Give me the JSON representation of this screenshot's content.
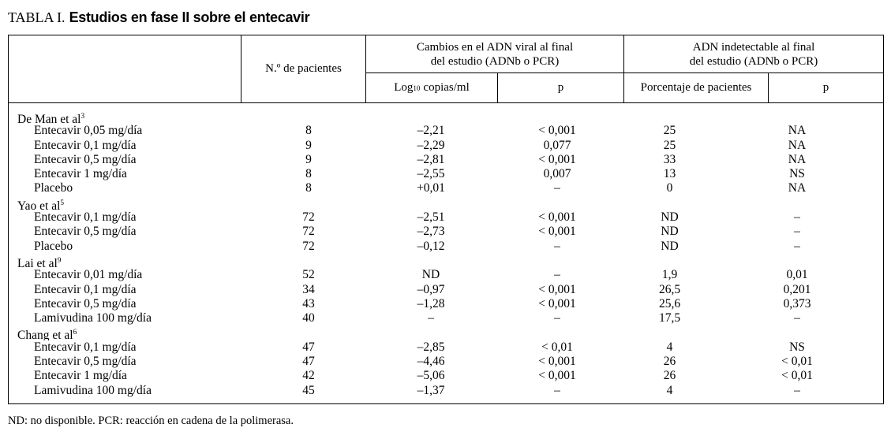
{
  "title": {
    "prefix": "TABLA I.",
    "main": "Estudios en fase II sobre el entecavir"
  },
  "header": {
    "patients_col": "N.º de pacientes",
    "group_adn_cambios": {
      "line1": "Cambios en el ADN viral al final",
      "line2": "del estudio (ADNb o PCR)",
      "sub_log_base": "Log",
      "sub_log_subscript": "10",
      "sub_log_unit": "copias/ml",
      "sub_p": "p"
    },
    "group_adn_indetectable": {
      "line1": "ADN indetectable al final",
      "line2": "del estudio (ADNb o PCR)",
      "sub_pct": "Porcentaje de pacientes",
      "sub_p": "p"
    }
  },
  "rows": [
    {
      "type": "group",
      "label": "De Man et al",
      "ref": "3"
    },
    {
      "type": "data",
      "label": "Entecavir 0,05 mg/día",
      "n": "8",
      "log": "–2,21",
      "p1": "< 0,001",
      "pct": "25",
      "p2": "NA"
    },
    {
      "type": "data",
      "label": "Entecavir 0,1 mg/día",
      "n": "9",
      "log": "–2,29",
      "p1": "0,077",
      "pct": "25",
      "p2": "NA"
    },
    {
      "type": "data",
      "label": "Entecavir 0,5 mg/día",
      "n": "9",
      "log": "–2,81",
      "p1": "< 0,001",
      "pct": "33",
      "p2": "NA"
    },
    {
      "type": "data",
      "label": "Entecavir 1 mg/día",
      "n": "8",
      "log": "–2,55",
      "p1": "0,007",
      "pct": "13",
      "p2": "NS"
    },
    {
      "type": "data",
      "label": "Placebo",
      "n": "8",
      "log": "+0,01",
      "p1": "–",
      "pct": "0",
      "p2": "NA"
    },
    {
      "type": "group",
      "label": "Yao et al",
      "ref": "5"
    },
    {
      "type": "data",
      "label": "Entecavir 0,1 mg/día",
      "n": "72",
      "log": "–2,51",
      "p1": "< 0,001",
      "pct": "ND",
      "p2": "–"
    },
    {
      "type": "data",
      "label": "Entecavir 0,5 mg/día",
      "n": "72",
      "log": "–2,73",
      "p1": "< 0,001",
      "pct": "ND",
      "p2": "–"
    },
    {
      "type": "data",
      "label": "Placebo",
      "n": "72",
      "log": "–0,12",
      "p1": "–",
      "pct": "ND",
      "p2": "–"
    },
    {
      "type": "group",
      "label": "Lai et al",
      "ref": "9"
    },
    {
      "type": "data",
      "label": "Entecavir 0,01 mg/día",
      "n": "52",
      "log": "ND",
      "p1": "–",
      "pct": "1,9",
      "p2": "0,01"
    },
    {
      "type": "data",
      "label": "Entecavir 0,1 mg/día",
      "n": "34",
      "log": "–0,97",
      "p1": "< 0,001",
      "pct": "26,5",
      "p2": "0,201"
    },
    {
      "type": "data",
      "label": "Entecavir 0,5 mg/día",
      "n": "43",
      "log": "–1,28",
      "p1": "< 0,001",
      "pct": "25,6",
      "p2": "0,373"
    },
    {
      "type": "data",
      "label": "Lamivudina 100 mg/día",
      "n": "40",
      "log": "–",
      "p1": "–",
      "pct": "17,5",
      "p2": "–"
    },
    {
      "type": "group",
      "label": "Chang et al",
      "ref": "6"
    },
    {
      "type": "data",
      "label": "Entecavir 0,1 mg/día",
      "n": "47",
      "log": "–2,85",
      "p1": "< 0,01",
      "pct": "4",
      "p2": "NS"
    },
    {
      "type": "data",
      "label": "Entecavir 0,5 mg/día",
      "n": "47",
      "log": "–4,46",
      "p1": "< 0,001",
      "pct": "26",
      "p2": "< 0,01"
    },
    {
      "type": "data",
      "label": "Entecavir 1 mg/día",
      "n": "42",
      "log": "–5,06",
      "p1": "< 0,001",
      "pct": "26",
      "p2": "< 0,01"
    },
    {
      "type": "data",
      "label": "Lamivudina 100 mg/día",
      "n": "45",
      "log": "–1,37",
      "p1": "–",
      "pct": "4",
      "p2": "–"
    }
  ],
  "footnote": "ND: no disponible. PCR: reacción en cadena de la polimerasa.",
  "colors": {
    "text": "#000000",
    "background": "#ffffff",
    "border": "#000000"
  }
}
